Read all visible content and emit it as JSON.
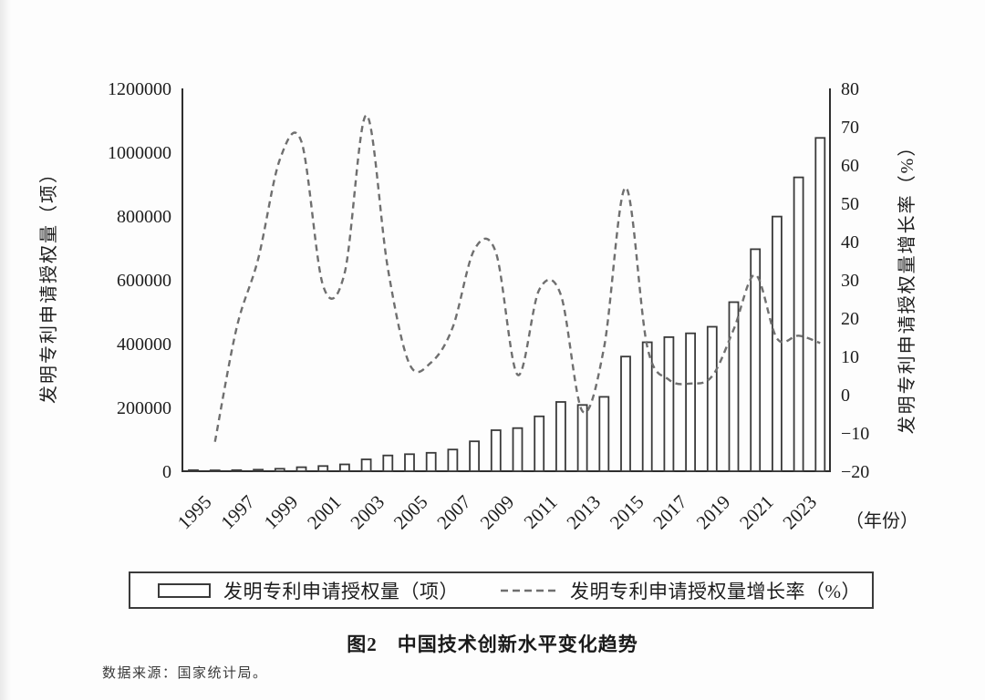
{
  "figure": {
    "caption": "图2　中国技术创新水平变化趋势",
    "source_note": "数据来源：国家统计局。"
  },
  "axes": {
    "left": {
      "title": "发明专利申请授权量（项）",
      "ticks": [
        "0",
        "200000",
        "400000",
        "600000",
        "800000",
        "1000000",
        "1200000"
      ]
    },
    "right": {
      "title": "发明专利申请授权量增长率（%）",
      "ticks": [
        "−20",
        "−10",
        "0",
        "10",
        "20",
        "30",
        "40",
        "50",
        "60",
        "70",
        "80"
      ]
    },
    "x": {
      "tick_labels": [
        "1995",
        "1997",
        "1999",
        "2001",
        "2003",
        "2005",
        "2007",
        "2009",
        "2011",
        "2013",
        "2015",
        "2017",
        "2019",
        "2021",
        "2023"
      ],
      "unit_label": "（年份）"
    }
  },
  "legend": {
    "items": [
      {
        "swatch": "bar-outline",
        "label": "发明专利申请授权量（项）"
      },
      {
        "swatch": "dashed-line",
        "label": "发明专利申请授权量增长率（%）"
      }
    ]
  },
  "colors": {
    "bar_fill": "#ffffff",
    "bar_stroke": "#3a3a3a",
    "growth_line": "#6f6f6f",
    "axis": "#2e2e2e",
    "text": "#1d1d1d"
  },
  "chart_data": {
    "type": "combo: bar + line (dual axis)",
    "title": "图2 中国技术创新水平变化趋势",
    "x": [
      1995,
      1996,
      1997,
      1998,
      1999,
      2000,
      2001,
      2002,
      2003,
      2004,
      2005,
      2006,
      2007,
      2008,
      2009,
      2010,
      2011,
      2012,
      2013,
      2014,
      2015,
      2016,
      2017,
      2018,
      2019,
      2020,
      2021,
      2022,
      2023,
      2024
    ],
    "series": [
      {
        "name": "发明专利申请授权量（项）",
        "type": "bar",
        "axis": "left",
        "values": [
          3393,
          2976,
          3494,
          4733,
          7637,
          12683,
          16296,
          21473,
          37154,
          49360,
          53305,
          57786,
          67948,
          93706,
          128489,
          135110,
          172113,
          217105,
          207688,
          233228,
          359316,
          404208,
          420144,
          432147,
          452804,
          530127,
          695946,
          798347,
          921031,
          1045000
        ]
      },
      {
        "name": "发明专利申请授权量增长率（%）",
        "type": "line",
        "axis": "right",
        "line_style": "dashed",
        "start_year": 1996,
        "values": [
          -12.3,
          17.4,
          35.5,
          61.4,
          66.1,
          28.5,
          31.8,
          73.0,
          32.9,
          8.0,
          8.4,
          17.6,
          37.9,
          37.1,
          5.2,
          27.4,
          26.1,
          -4.3,
          12.3,
          54.1,
          12.5,
          3.9,
          2.9,
          4.8,
          17.1,
          31.3,
          14.7,
          15.4,
          13.5
        ]
      }
    ],
    "left_ylim": [
      0,
      1200000
    ],
    "left_tick_step": 200000,
    "right_ylim": [
      -20,
      80
    ],
    "right_tick_step": 10,
    "xlabel": "（年份）",
    "ylabel_left": "发明专利申请授权量（项）",
    "ylabel_right": "发明专利申请授权量增长率（%）",
    "grid": false,
    "legend_position": "bottom"
  }
}
